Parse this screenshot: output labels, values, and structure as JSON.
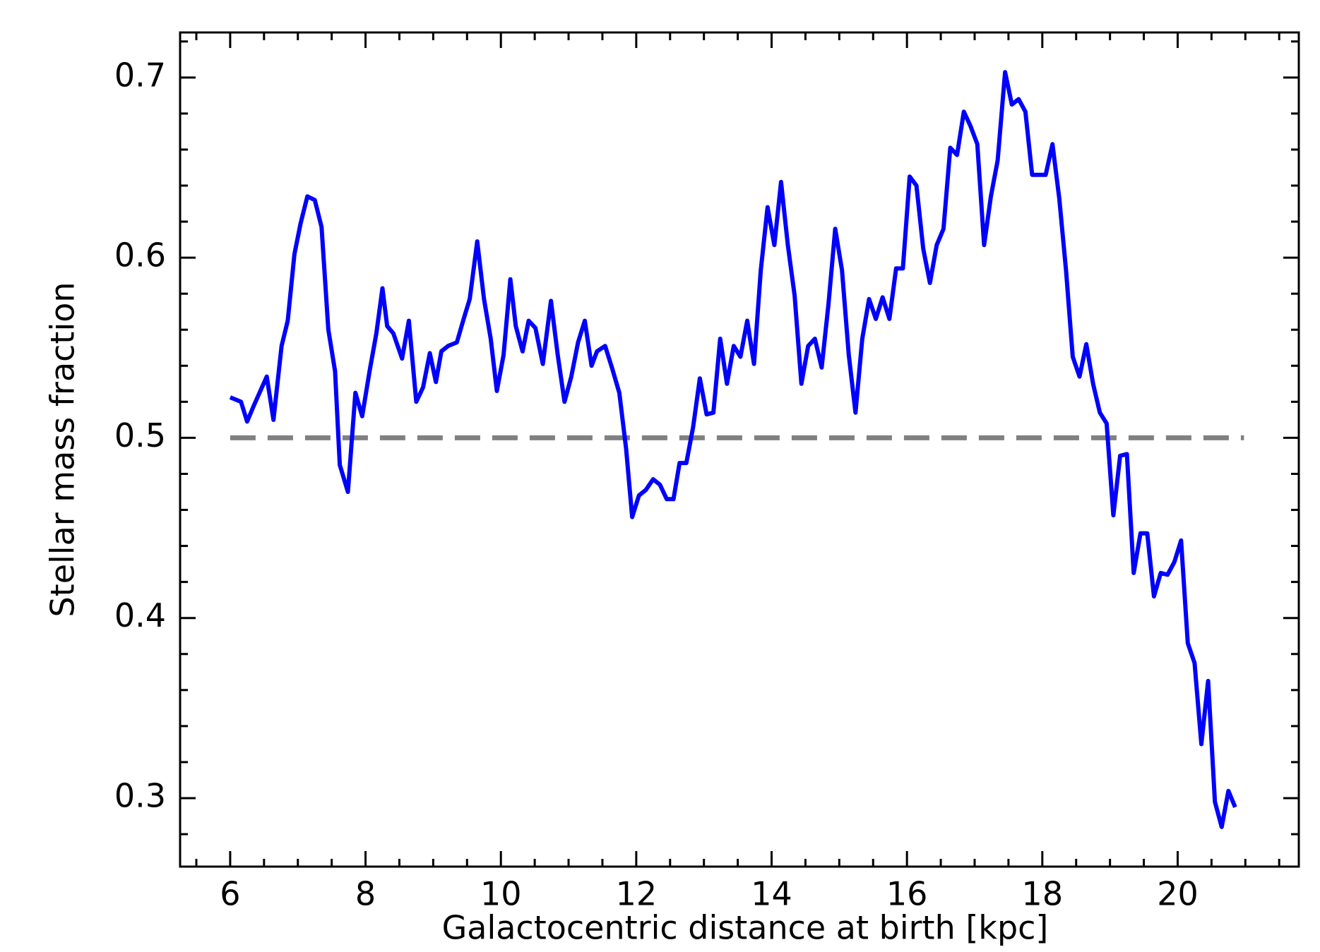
{
  "chart_data": {
    "type": "line",
    "xlabel": "Galactocentric distance at birth [kpc]",
    "ylabel": "Stellar mass fraction",
    "xlim": [
      5.26,
      21.79
    ],
    "ylim": [
      0.262,
      0.725
    ],
    "xticks": [
      6,
      8,
      10,
      12,
      14,
      16,
      18,
      20
    ],
    "yticks": [
      0.3,
      0.4,
      0.5,
      0.6,
      0.7
    ],
    "xminorticks": [
      5.5,
      6.5,
      7,
      7.5,
      8.5,
      9,
      9.5,
      10.5,
      11,
      11.5,
      12.5,
      13,
      13.5,
      14.5,
      15,
      15.5,
      16.5,
      17,
      17.5,
      18.5,
      19,
      19.5,
      20.5,
      21,
      21.5
    ],
    "yminorticks": [
      0.28,
      0.32,
      0.34,
      0.36,
      0.38,
      0.42,
      0.44,
      0.46,
      0.48,
      0.52,
      0.54,
      0.56,
      0.58,
      0.62,
      0.64,
      0.66,
      0.68,
      0.72
    ],
    "hline": {
      "y": 0.5,
      "x": [
        6,
        20.98
      ],
      "color": "#808080",
      "style": "dashed"
    },
    "series": [
      {
        "color": "#0000ff",
        "x": [
          6.0,
          6.16,
          6.25,
          6.35,
          6.54,
          6.64,
          6.76,
          6.85,
          6.95,
          7.04,
          7.14,
          7.25,
          7.35,
          7.45,
          7.55,
          7.62,
          7.74,
          7.85,
          7.95,
          8.06,
          8.16,
          8.25,
          8.32,
          8.41,
          8.54,
          8.64,
          8.75,
          8.85,
          8.95,
          9.04,
          9.12,
          9.22,
          9.35,
          9.45,
          9.54,
          9.65,
          9.75,
          9.85,
          9.94,
          10.04,
          10.14,
          10.22,
          10.32,
          10.41,
          10.51,
          10.62,
          10.74,
          10.84,
          10.94,
          11.04,
          11.14,
          11.24,
          11.34,
          11.42,
          11.54,
          11.64,
          11.75,
          11.85,
          11.94,
          12.04,
          12.14,
          12.25,
          12.35,
          12.45,
          12.55,
          12.64,
          12.74,
          12.84,
          12.94,
          13.04,
          13.14,
          13.24,
          13.34,
          13.44,
          13.54,
          13.64,
          13.74,
          13.84,
          13.94,
          14.04,
          14.14,
          14.24,
          14.34,
          14.44,
          14.54,
          14.64,
          14.74,
          14.84,
          14.94,
          15.04,
          15.14,
          15.24,
          15.34,
          15.44,
          15.54,
          15.64,
          15.74,
          15.84,
          15.94,
          16.04,
          16.14,
          16.24,
          16.34,
          16.44,
          16.54,
          16.64,
          16.74,
          16.84,
          16.94,
          17.04,
          17.14,
          17.24,
          17.34,
          17.45,
          17.55,
          17.65,
          17.75,
          17.85,
          17.95,
          18.05,
          18.15,
          18.25,
          18.35,
          18.45,
          18.55,
          18.65,
          18.75,
          18.85,
          18.95,
          19.05,
          19.15,
          19.25,
          19.35,
          19.45,
          19.55,
          19.65,
          19.75,
          19.85,
          19.95,
          20.05,
          20.15,
          20.25,
          20.35,
          20.45,
          20.55,
          20.65,
          20.75,
          20.85
        ],
        "values": [
          0.5225,
          0.52,
          0.509,
          0.518,
          0.534,
          0.51,
          0.551,
          0.565,
          0.602,
          0.619,
          0.634,
          0.632,
          0.617,
          0.56,
          0.537,
          0.485,
          0.47,
          0.525,
          0.512,
          0.537,
          0.558,
          0.583,
          0.562,
          0.558,
          0.544,
          0.565,
          0.52,
          0.528,
          0.547,
          0.531,
          0.548,
          0.551,
          0.553,
          0.566,
          0.577,
          0.609,
          0.577,
          0.555,
          0.526,
          0.546,
          0.588,
          0.562,
          0.548,
          0.565,
          0.561,
          0.541,
          0.576,
          0.546,
          0.52,
          0.534,
          0.553,
          0.565,
          0.54,
          0.548,
          0.551,
          0.539,
          0.525,
          0.494,
          0.456,
          0.468,
          0.471,
          0.477,
          0.474,
          0.466,
          0.466,
          0.486,
          0.486,
          0.506,
          0.533,
          0.513,
          0.514,
          0.555,
          0.53,
          0.551,
          0.545,
          0.565,
          0.541,
          0.593,
          0.628,
          0.607,
          0.642,
          0.607,
          0.579,
          0.53,
          0.551,
          0.555,
          0.539,
          0.574,
          0.616,
          0.593,
          0.546,
          0.514,
          0.555,
          0.577,
          0.566,
          0.578,
          0.566,
          0.594,
          0.594,
          0.645,
          0.64,
          0.605,
          0.586,
          0.607,
          0.616,
          0.661,
          0.657,
          0.681,
          0.673,
          0.663,
          0.607,
          0.634,
          0.654,
          0.703,
          0.685,
          0.688,
          0.681,
          0.646,
          0.646,
          0.646,
          0.663,
          0.633,
          0.593,
          0.545,
          0.534,
          0.552,
          0.53,
          0.514,
          0.508,
          0.457,
          0.49,
          0.491,
          0.425,
          0.447,
          0.447,
          0.412,
          0.425,
          0.424,
          0.431,
          0.443,
          0.386,
          0.375,
          0.33,
          0.365,
          0.298,
          0.284,
          0.304,
          0.295
        ]
      }
    ]
  }
}
